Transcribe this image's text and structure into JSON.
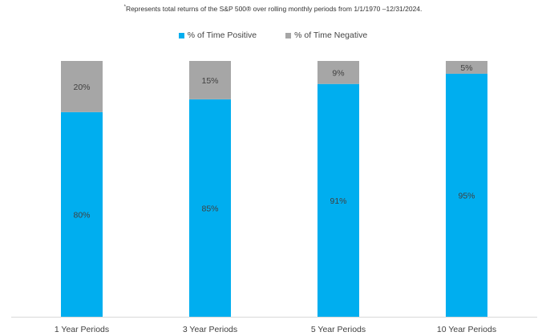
{
  "footnote": {
    "marker": "*",
    "text": "Represents total returns of the S&P 500® over rolling monthly periods from 1/1/1970 –12/31/2024."
  },
  "chart_data": {
    "type": "bar",
    "stacked": true,
    "percent_stacked": true,
    "categories": [
      "1 Year Periods",
      "3 Year Periods",
      "5 Year Periods",
      "10 Year Periods"
    ],
    "series": [
      {
        "name": "% of Time Positive",
        "values": [
          80,
          85,
          91,
          95
        ],
        "labels": [
          "80%",
          "85%",
          "91%",
          "95%"
        ],
        "color": "#00aeef"
      },
      {
        "name": "% of Time Negative",
        "values": [
          20,
          15,
          9,
          5
        ],
        "labels": [
          "20%",
          "15%",
          "9%",
          "5%"
        ],
        "color": "#a6a6a6"
      }
    ],
    "ylim": [
      0,
      100
    ],
    "legend": "top-center",
    "grid": false,
    "title": "",
    "xlabel": "",
    "ylabel": ""
  }
}
